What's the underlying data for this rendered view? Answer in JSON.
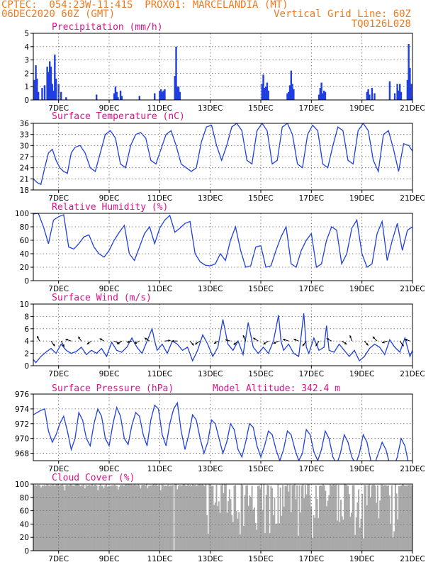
{
  "header": {
    "line1_left": "CPTEC:  054:23W-11:41S  PROX01: MARCELANDIA (MT)",
    "line2_left": "06DEC2020 60Z (GMT)",
    "line2_right": "Vertical Grid Line: 60Z",
    "line3_right": "TQ0126L028"
  },
  "colors": {
    "header": "#f07a1e",
    "title": "#e0108a",
    "series": "#1f3fe0",
    "cloud": "#a9a9a9",
    "grid": "#666666"
  },
  "x_axis": {
    "start": "06DEC",
    "end": "21DEC",
    "ticks": [
      {
        "day": 7,
        "label": "7DEC"
      },
      {
        "day": 9,
        "label": "9DEC"
      },
      {
        "day": 11,
        "label": "11DEC"
      },
      {
        "day": 13,
        "label": "13DEC"
      },
      {
        "day": 15,
        "label": "15DEC"
      },
      {
        "day": 17,
        "label": "17DEC"
      },
      {
        "day": 19,
        "label": "19DEC"
      },
      {
        "day": 21,
        "label": "21DEC"
      }
    ]
  },
  "chart_data": [
    {
      "type": "bar",
      "title": "Precipitation (mm/h)",
      "ylim": [
        0,
        5
      ],
      "yticks": [
        "0",
        "1",
        "2",
        "3",
        "4",
        "5"
      ],
      "x": [
        6.05,
        6.1,
        6.15,
        6.2,
        6.35,
        6.45,
        6.55,
        6.6,
        6.65,
        6.7,
        6.75,
        6.8,
        6.85,
        6.9,
        7.0,
        7.1,
        7.3,
        8.5,
        9.2,
        9.25,
        9.3,
        9.35,
        9.45,
        9.5,
        10.2,
        10.8,
        11.0,
        11.05,
        11.1,
        11.15,
        11.2,
        11.6,
        11.65,
        11.7,
        11.75,
        11.8,
        15.05,
        15.1,
        15.15,
        15.2,
        15.25,
        15.3,
        16.05,
        16.1,
        16.15,
        16.2,
        16.25,
        16.3,
        17.3,
        17.35,
        17.4,
        17.45,
        17.5,
        17.55,
        19.2,
        19.25,
        19.3,
        19.4,
        19.5,
        20.1,
        20.3,
        20.4,
        20.45,
        20.5,
        20.55,
        20.8,
        20.85,
        20.9,
        20.95,
        21.0
      ],
      "values": [
        1.5,
        2.6,
        1.6,
        0.6,
        0.9,
        1.1,
        2.5,
        2.1,
        2.9,
        2.5,
        1.2,
        0.7,
        3.4,
        1.6,
        1.2,
        0.6,
        0.2,
        0.4,
        0.5,
        1.0,
        0.6,
        0.2,
        0.7,
        0.3,
        0.3,
        0.5,
        0.7,
        0.8,
        0.6,
        0.7,
        0.8,
        1.8,
        4.0,
        1.0,
        1.0,
        0.6,
        1.2,
        1.9,
        0.9,
        1.0,
        1.3,
        0.7,
        0.5,
        0.6,
        1.1,
        2.2,
        1.2,
        0.8,
        0.4,
        0.9,
        1.3,
        0.5,
        0.7,
        0.6,
        0.6,
        0.8,
        0.4,
        0.9,
        0.5,
        1.4,
        0.5,
        1.2,
        0.7,
        1.2,
        0.6,
        1.5,
        4.2,
        2.4,
        1.2,
        0.3
      ]
    },
    {
      "type": "line",
      "title": "Surface Temperature (nC)",
      "ylim": [
        18,
        36
      ],
      "yticks": [
        "18",
        "21",
        "24",
        "27",
        "30",
        "33",
        "36"
      ],
      "x": [
        6.0,
        6.15,
        6.3,
        6.45,
        6.6,
        6.75,
        6.9,
        7.05,
        7.2,
        7.35,
        7.5,
        7.65,
        7.85,
        8.05,
        8.25,
        8.45,
        8.65,
        8.85,
        9.05,
        9.25,
        9.45,
        9.65,
        9.85,
        10.05,
        10.25,
        10.45,
        10.65,
        10.85,
        11.05,
        11.25,
        11.45,
        11.65,
        11.85,
        12.05,
        12.25,
        12.45,
        12.65,
        12.85,
        13.05,
        13.25,
        13.45,
        13.65,
        13.85,
        14.05,
        14.25,
        14.45,
        14.65,
        14.85,
        15.05,
        15.25,
        15.45,
        15.65,
        15.85,
        16.05,
        16.25,
        16.45,
        16.65,
        16.85,
        17.05,
        17.25,
        17.45,
        17.65,
        17.85,
        18.05,
        18.25,
        18.45,
        18.65,
        18.85,
        19.05,
        19.25,
        19.45,
        19.65,
        19.85,
        20.05,
        20.25,
        20.45,
        20.65,
        20.85,
        21.0
      ],
      "values": [
        21.0,
        20.0,
        19.5,
        24.0,
        28.0,
        29.0,
        26.0,
        24.0,
        23.0,
        22.5,
        28.0,
        29.5,
        30.0,
        28.0,
        24.0,
        23.0,
        28.0,
        33.0,
        34.0,
        32.0,
        25.0,
        24.0,
        30.0,
        33.0,
        33.5,
        32.0,
        26.0,
        25.0,
        29.0,
        33.0,
        34.0,
        30.0,
        25.0,
        24.0,
        23.0,
        24.0,
        31.0,
        35.0,
        35.5,
        30.0,
        26.0,
        30.0,
        35.0,
        36.0,
        34.0,
        26.0,
        25.0,
        34.0,
        36.0,
        34.0,
        25.0,
        26.0,
        35.0,
        36.0,
        33.0,
        25.0,
        24.0,
        33.0,
        35.5,
        34.0,
        25.0,
        24.0,
        30.0,
        35.0,
        34.0,
        26.0,
        25.0,
        34.0,
        36.0,
        34.0,
        26.0,
        23.0,
        33.0,
        34.0,
        29.0,
        23.0,
        30.5,
        30.0,
        28.5
      ]
    },
    {
      "type": "line",
      "title": "Relative Humidity (%)",
      "ylim": [
        0,
        100
      ],
      "yticks": [
        "0",
        "20",
        "40",
        "60",
        "80",
        "100"
      ],
      "x": [
        6.0,
        6.2,
        6.4,
        6.6,
        6.8,
        7.0,
        7.2,
        7.4,
        7.6,
        7.8,
        8.0,
        8.2,
        8.4,
        8.6,
        8.8,
        9.0,
        9.2,
        9.4,
        9.6,
        9.8,
        10.0,
        10.2,
        10.4,
        10.6,
        10.8,
        11.0,
        11.2,
        11.4,
        11.6,
        11.8,
        12.0,
        12.2,
        12.4,
        12.6,
        12.8,
        13.0,
        13.2,
        13.4,
        13.6,
        13.8,
        14.0,
        14.2,
        14.4,
        14.6,
        14.8,
        15.0,
        15.2,
        15.4,
        15.6,
        15.8,
        16.0,
        16.2,
        16.4,
        16.6,
        16.8,
        17.0,
        17.2,
        17.4,
        17.6,
        17.8,
        18.0,
        18.2,
        18.4,
        18.6,
        18.8,
        19.0,
        19.2,
        19.4,
        19.6,
        19.8,
        20.0,
        20.2,
        20.4,
        20.6,
        20.8,
        21.0
      ],
      "values": [
        99,
        100,
        80,
        55,
        90,
        95,
        98,
        50,
        47,
        55,
        65,
        68,
        50,
        40,
        35,
        45,
        60,
        72,
        82,
        40,
        30,
        50,
        70,
        80,
        55,
        78,
        90,
        97,
        72,
        78,
        85,
        88,
        40,
        28,
        23,
        22,
        25,
        40,
        30,
        60,
        80,
        45,
        20,
        22,
        50,
        52,
        20,
        22,
        45,
        65,
        80,
        25,
        20,
        45,
        60,
        70,
        20,
        25,
        60,
        80,
        75,
        25,
        40,
        78,
        90,
        40,
        20,
        25,
        70,
        88,
        30,
        60,
        85,
        45,
        75,
        80
      ]
    },
    {
      "type": "line",
      "title": "Surface Wind (m/s)",
      "ylim": [
        0,
        10
      ],
      "yticks": [
        "0",
        "2",
        "4",
        "6",
        "8",
        "10"
      ],
      "x": [
        6.0,
        6.1,
        6.3,
        6.5,
        6.7,
        6.9,
        7.1,
        7.3,
        7.5,
        7.7,
        7.9,
        8.1,
        8.3,
        8.5,
        8.7,
        8.9,
        9.1,
        9.3,
        9.5,
        9.7,
        9.9,
        10.1,
        10.3,
        10.5,
        10.7,
        10.8,
        10.9,
        11.1,
        11.3,
        11.5,
        11.7,
        11.9,
        12.1,
        12.3,
        12.5,
        12.7,
        12.9,
        13.1,
        13.3,
        13.5,
        13.7,
        13.9,
        14.1,
        14.3,
        14.5,
        14.7,
        14.9,
        15.1,
        15.3,
        15.5,
        15.7,
        15.8,
        15.9,
        16.1,
        16.3,
        16.5,
        16.7,
        16.8,
        16.9,
        17.1,
        17.3,
        17.5,
        17.6,
        17.7,
        17.9,
        18.1,
        18.3,
        18.5,
        18.7,
        18.9,
        19.1,
        19.3,
        19.5,
        19.7,
        19.9,
        20.1,
        20.3,
        20.5,
        20.7,
        20.9,
        21.0
      ],
      "values": [
        1.0,
        0.5,
        1.5,
        2.2,
        2.8,
        2.0,
        3.5,
        2.5,
        2.0,
        2.3,
        3.0,
        1.8,
        2.5,
        2.0,
        2.8,
        1.5,
        3.8,
        2.5,
        2.2,
        3.0,
        4.5,
        3.0,
        2.0,
        4.0,
        6.0,
        4.0,
        2.5,
        3.5,
        2.0,
        4.0,
        3.5,
        2.5,
        3.0,
        0.8,
        2.5,
        5.0,
        3.5,
        1.5,
        3.0,
        7.5,
        3.5,
        2.5,
        4.0,
        1.8,
        7.0,
        3.0,
        2.0,
        3.0,
        2.0,
        4.0,
        8.2,
        4.0,
        2.5,
        3.5,
        2.0,
        1.5,
        8.5,
        3.0,
        2.0,
        4.5,
        2.5,
        3.0,
        6.5,
        2.5,
        2.2,
        3.5,
        2.5,
        1.5,
        2.5,
        0.8,
        1.5,
        2.8,
        3.5,
        3.0,
        1.8,
        4.2,
        3.0,
        2.2,
        4.5,
        1.5,
        2.5
      ],
      "vectors": [
        {
          "x": 6.25,
          "u": -0.4,
          "v": 0.8
        },
        {
          "x": 6.7,
          "u": 0.6,
          "v": -0.8
        },
        {
          "x": 7.1,
          "u": 0.5,
          "v": -0.9
        },
        {
          "x": 7.5,
          "u": -0.9,
          "v": 0.3
        },
        {
          "x": 7.9,
          "u": -0.5,
          "v": 0.7
        },
        {
          "x": 8.3,
          "u": -0.7,
          "v": -0.5
        },
        {
          "x": 8.8,
          "u": -0.7,
          "v": 0.4
        },
        {
          "x": 9.2,
          "u": 0.8,
          "v": -0.4
        },
        {
          "x": 9.5,
          "u": -0.7,
          "v": -0.5
        },
        {
          "x": 9.9,
          "u": -0.8,
          "v": -0.2
        },
        {
          "x": 10.2,
          "u": -0.8,
          "v": -0.4
        },
        {
          "x": 10.6,
          "u": -0.8,
          "v": 0.5
        },
        {
          "x": 11.2,
          "u": 0.9,
          "v": 0.1
        },
        {
          "x": 11.7,
          "u": -0.9,
          "v": 0.0
        },
        {
          "x": 12.2,
          "u": 0.6,
          "v": -0.7
        },
        {
          "x": 12.6,
          "u": -0.8,
          "v": -0.5
        },
        {
          "x": 13.3,
          "u": -0.6,
          "v": -0.4
        },
        {
          "x": 13.8,
          "u": -0.8,
          "v": 0.2
        },
        {
          "x": 14.1,
          "u": -0.7,
          "v": -0.6
        },
        {
          "x": 14.4,
          "u": -0.4,
          "v": 0.9
        },
        {
          "x": 14.9,
          "u": -0.8,
          "v": 0.5
        },
        {
          "x": 15.3,
          "u": -0.8,
          "v": -0.5
        },
        {
          "x": 15.7,
          "u": -0.8,
          "v": -0.4
        },
        {
          "x": 16.1,
          "u": -0.9,
          "v": 0.3
        },
        {
          "x": 16.5,
          "u": -0.8,
          "v": 0.3
        },
        {
          "x": 16.8,
          "u": -0.6,
          "v": -0.8
        },
        {
          "x": 17.3,
          "u": -0.5,
          "v": -0.8
        },
        {
          "x": 17.8,
          "u": -0.8,
          "v": 0.4
        },
        {
          "x": 18.2,
          "u": 0.8,
          "v": -0.5
        },
        {
          "x": 18.6,
          "u": -0.3,
          "v": 0.9
        },
        {
          "x": 19.1,
          "u": 0.6,
          "v": -0.7
        },
        {
          "x": 19.6,
          "u": -0.7,
          "v": 0.7
        },
        {
          "x": 20.0,
          "u": -0.8,
          "v": -0.3
        },
        {
          "x": 20.5,
          "u": 0.6,
          "v": -0.8
        },
        {
          "x": 20.9,
          "u": -0.8,
          "v": 0.3
        }
      ]
    },
    {
      "type": "line",
      "title": "Surface Pressure (hPa)",
      "annotation": "Model Altitude: 342.4 m",
      "ylim": [
        967,
        976
      ],
      "yticks": [
        "968",
        "970",
        "972",
        "974",
        "976"
      ],
      "x": [
        6.0,
        6.15,
        6.3,
        6.45,
        6.6,
        6.75,
        6.9,
        7.05,
        7.2,
        7.35,
        7.5,
        7.65,
        7.8,
        7.95,
        8.1,
        8.25,
        8.4,
        8.55,
        8.7,
        8.85,
        9.0,
        9.15,
        9.3,
        9.45,
        9.6,
        9.75,
        9.9,
        10.05,
        10.2,
        10.35,
        10.5,
        10.65,
        10.8,
        10.95,
        11.1,
        11.25,
        11.4,
        11.55,
        11.7,
        11.85,
        12.0,
        12.15,
        12.3,
        12.45,
        12.6,
        12.75,
        12.9,
        13.05,
        13.2,
        13.35,
        13.5,
        13.65,
        13.8,
        13.95,
        14.1,
        14.25,
        14.4,
        14.55,
        14.7,
        14.85,
        15.0,
        15.15,
        15.3,
        15.45,
        15.6,
        15.75,
        15.9,
        16.05,
        16.2,
        16.35,
        16.5,
        16.65,
        16.8,
        16.95,
        17.1,
        17.25,
        17.4,
        17.55,
        17.7,
        17.85,
        18.0,
        18.15,
        18.3,
        18.45,
        18.6,
        18.75,
        18.9,
        19.05,
        19.2,
        19.35,
        19.5,
        19.65,
        19.8,
        19.95,
        20.1,
        20.25,
        20.4,
        20.55,
        20.7,
        20.85,
        21.0
      ],
      "values": [
        973.2,
        973.5,
        973.8,
        974.0,
        971.0,
        969.5,
        970.5,
        972.0,
        973.0,
        971.0,
        968.5,
        970.0,
        973.5,
        972.5,
        970.0,
        969.0,
        972.0,
        974.0,
        973.0,
        970.0,
        969.0,
        972.0,
        974.2,
        973.0,
        970.0,
        969.2,
        971.8,
        973.5,
        973.0,
        970.5,
        969.0,
        972.5,
        974.5,
        974.0,
        970.5,
        969.0,
        972.0,
        974.0,
        974.8,
        971.0,
        968.5,
        970.5,
        973.2,
        972.5,
        970.0,
        968.0,
        969.5,
        972.5,
        972.0,
        970.0,
        968.0,
        969.5,
        972.0,
        971.2,
        968.5,
        967.5,
        969.5,
        972.0,
        971.5,
        969.0,
        967.5,
        969.0,
        971.0,
        970.5,
        968.5,
        967.0,
        968.5,
        971.0,
        970.5,
        968.5,
        967.0,
        968.0,
        971.2,
        970.5,
        968.2,
        967.0,
        968.5,
        971.0,
        970.0,
        967.5,
        966.5,
        968.0,
        970.5,
        969.5,
        967.5,
        966.5,
        968.0,
        970.5,
        969.5,
        967.0,
        966.5,
        968.0,
        969.5,
        968.5,
        966.5,
        966.0,
        967.5,
        970.0,
        969.0,
        966.5,
        966.5
      ]
    },
    {
      "type": "bar",
      "title": "Cloud Cover (%)",
      "ylim": [
        0,
        100
      ],
      "yticks": [
        "0",
        "20",
        "40",
        "60",
        "80",
        "100"
      ]
    }
  ]
}
